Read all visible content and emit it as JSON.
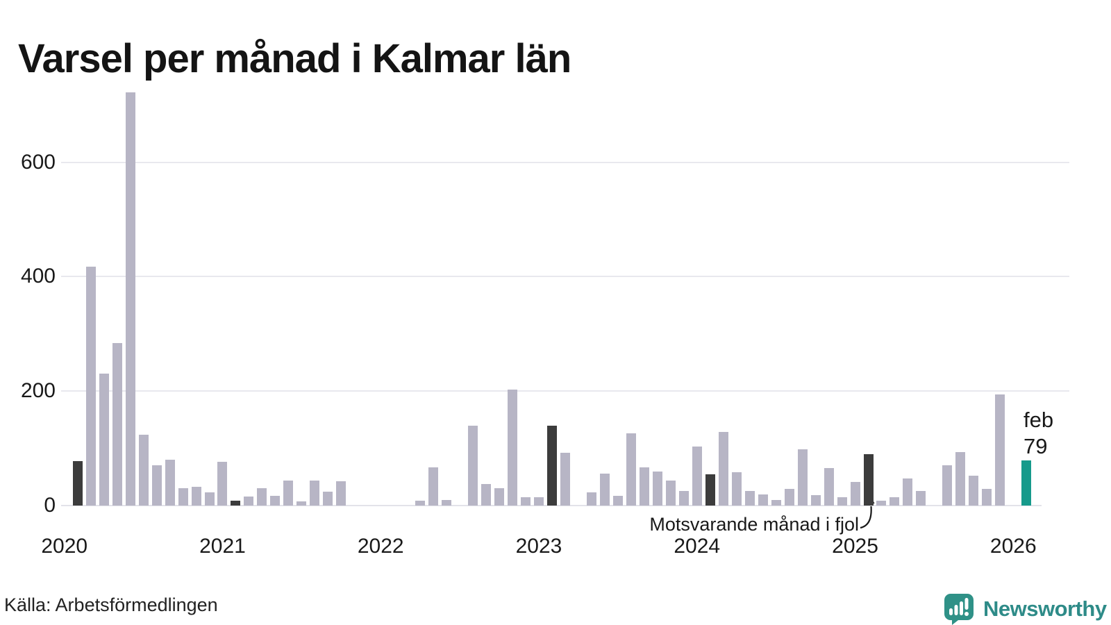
{
  "title": "Varsel per månad i Kalmar län",
  "source": "Källa: Arbetsförmedlingen",
  "branding": {
    "name": "Newsworthy"
  },
  "annotation": {
    "text": "Motsvarande månad i fjol",
    "target_month": "2025-02"
  },
  "current_label": {
    "line1": "feb",
    "line2": "79"
  },
  "colors": {
    "bar": "#b7b5c5",
    "bar_feb": "#3c3c3c",
    "bar_current": "#169a8b",
    "grid": "#e8e8ee",
    "logo_teal": "#2e8b88"
  },
  "chart_data": {
    "type": "bar",
    "title": "Varsel per månad i Kalmar län",
    "xlabel": "",
    "ylabel": "",
    "ylim": [
      0,
      750
    ],
    "y_ticks": [
      0,
      200,
      400,
      600
    ],
    "grid": true,
    "x_start": "2020-02",
    "x_tick_years": [
      "2020",
      "2021",
      "2022",
      "2023",
      "2024",
      "2025",
      "2026"
    ],
    "series": [
      {
        "month": "2020-02",
        "value": 78,
        "kind": "feb"
      },
      {
        "month": "2020-03",
        "value": 417,
        "kind": "normal"
      },
      {
        "month": "2020-04",
        "value": 230,
        "kind": "normal"
      },
      {
        "month": "2020-05",
        "value": 284,
        "kind": "normal"
      },
      {
        "month": "2020-06",
        "value": 722,
        "kind": "normal"
      },
      {
        "month": "2020-07",
        "value": 124,
        "kind": "normal"
      },
      {
        "month": "2020-08",
        "value": 70,
        "kind": "normal"
      },
      {
        "month": "2020-09",
        "value": 80,
        "kind": "normal"
      },
      {
        "month": "2020-10",
        "value": 30,
        "kind": "normal"
      },
      {
        "month": "2020-11",
        "value": 33,
        "kind": "normal"
      },
      {
        "month": "2020-12",
        "value": 23,
        "kind": "normal"
      },
      {
        "month": "2021-01",
        "value": 77,
        "kind": "normal"
      },
      {
        "month": "2021-02",
        "value": 9,
        "kind": "feb"
      },
      {
        "month": "2021-03",
        "value": 16,
        "kind": "normal"
      },
      {
        "month": "2021-04",
        "value": 30,
        "kind": "normal"
      },
      {
        "month": "2021-05",
        "value": 17,
        "kind": "normal"
      },
      {
        "month": "2021-06",
        "value": 44,
        "kind": "normal"
      },
      {
        "month": "2021-07",
        "value": 7,
        "kind": "normal"
      },
      {
        "month": "2021-08",
        "value": 44,
        "kind": "normal"
      },
      {
        "month": "2021-09",
        "value": 24,
        "kind": "normal"
      },
      {
        "month": "2021-10",
        "value": 43,
        "kind": "normal"
      },
      {
        "month": "2021-11",
        "value": 0,
        "kind": "normal"
      },
      {
        "month": "2021-12",
        "value": 0,
        "kind": "normal"
      },
      {
        "month": "2022-01",
        "value": 0,
        "kind": "normal"
      },
      {
        "month": "2022-02",
        "value": 0,
        "kind": "feb"
      },
      {
        "month": "2022-03",
        "value": 0,
        "kind": "normal"
      },
      {
        "month": "2022-04",
        "value": 8,
        "kind": "normal"
      },
      {
        "month": "2022-05",
        "value": 67,
        "kind": "normal"
      },
      {
        "month": "2022-06",
        "value": 10,
        "kind": "normal"
      },
      {
        "month": "2022-07",
        "value": 0,
        "kind": "normal"
      },
      {
        "month": "2022-08",
        "value": 140,
        "kind": "normal"
      },
      {
        "month": "2022-09",
        "value": 38,
        "kind": "normal"
      },
      {
        "month": "2022-10",
        "value": 30,
        "kind": "normal"
      },
      {
        "month": "2022-11",
        "value": 203,
        "kind": "normal"
      },
      {
        "month": "2022-12",
        "value": 15,
        "kind": "normal"
      },
      {
        "month": "2023-01",
        "value": 15,
        "kind": "normal"
      },
      {
        "month": "2023-02",
        "value": 139,
        "kind": "feb"
      },
      {
        "month": "2023-03",
        "value": 92,
        "kind": "normal"
      },
      {
        "month": "2023-04",
        "value": 0,
        "kind": "normal"
      },
      {
        "month": "2023-05",
        "value": 23,
        "kind": "normal"
      },
      {
        "month": "2023-06",
        "value": 56,
        "kind": "normal"
      },
      {
        "month": "2023-07",
        "value": 17,
        "kind": "normal"
      },
      {
        "month": "2023-08",
        "value": 126,
        "kind": "normal"
      },
      {
        "month": "2023-09",
        "value": 67,
        "kind": "normal"
      },
      {
        "month": "2023-10",
        "value": 59,
        "kind": "normal"
      },
      {
        "month": "2023-11",
        "value": 44,
        "kind": "normal"
      },
      {
        "month": "2023-12",
        "value": 26,
        "kind": "normal"
      },
      {
        "month": "2024-01",
        "value": 103,
        "kind": "normal"
      },
      {
        "month": "2024-02",
        "value": 55,
        "kind": "feb"
      },
      {
        "month": "2024-03",
        "value": 129,
        "kind": "normal"
      },
      {
        "month": "2024-04",
        "value": 58,
        "kind": "normal"
      },
      {
        "month": "2024-05",
        "value": 26,
        "kind": "normal"
      },
      {
        "month": "2024-06",
        "value": 19,
        "kind": "normal"
      },
      {
        "month": "2024-07",
        "value": 10,
        "kind": "normal"
      },
      {
        "month": "2024-08",
        "value": 29,
        "kind": "normal"
      },
      {
        "month": "2024-09",
        "value": 98,
        "kind": "normal"
      },
      {
        "month": "2024-10",
        "value": 18,
        "kind": "normal"
      },
      {
        "month": "2024-11",
        "value": 65,
        "kind": "normal"
      },
      {
        "month": "2024-12",
        "value": 15,
        "kind": "normal"
      },
      {
        "month": "2025-01",
        "value": 41,
        "kind": "normal"
      },
      {
        "month": "2025-02",
        "value": 90,
        "kind": "feb"
      },
      {
        "month": "2025-03",
        "value": 8,
        "kind": "normal"
      },
      {
        "month": "2025-04",
        "value": 15,
        "kind": "normal"
      },
      {
        "month": "2025-05",
        "value": 47,
        "kind": "normal"
      },
      {
        "month": "2025-06",
        "value": 26,
        "kind": "normal"
      },
      {
        "month": "2025-07",
        "value": 0,
        "kind": "normal"
      },
      {
        "month": "2025-08",
        "value": 70,
        "kind": "normal"
      },
      {
        "month": "2025-09",
        "value": 93,
        "kind": "normal"
      },
      {
        "month": "2025-10",
        "value": 52,
        "kind": "normal"
      },
      {
        "month": "2025-11",
        "value": 29,
        "kind": "normal"
      },
      {
        "month": "2025-12",
        "value": 194,
        "kind": "normal"
      },
      {
        "month": "2026-01",
        "value": 0,
        "kind": "normal"
      },
      {
        "month": "2026-02",
        "value": 79,
        "kind": "current"
      }
    ]
  }
}
